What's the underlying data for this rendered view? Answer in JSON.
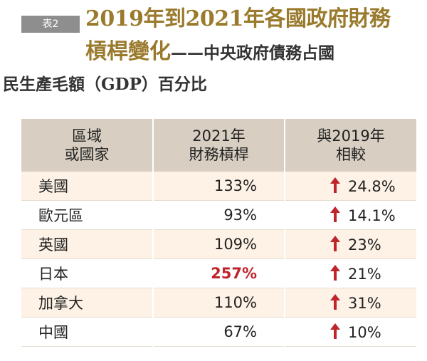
{
  "badge": "表2",
  "title": {
    "line1": "2019年到2021年各國政府財務",
    "line2_accent": "槓桿變化",
    "line2_dash": "——",
    "line2_rest": "中央政府債務占國",
    "line3": "民生產毛額（GDP）百分比"
  },
  "table": {
    "headers": [
      [
        "區域",
        "或國家"
      ],
      [
        "2021年",
        "財務槓桿"
      ],
      [
        "與2019年",
        "相較"
      ]
    ],
    "rows": [
      {
        "region": "美國",
        "leverage": "133%",
        "change": "24.8%",
        "highlight": false
      },
      {
        "region": "歐元區",
        "leverage": "93%",
        "change": "14.1%",
        "highlight": false
      },
      {
        "region": "英國",
        "leverage": "109%",
        "change": "23%",
        "highlight": false
      },
      {
        "region": "日本",
        "leverage": "257%",
        "change": "21%",
        "highlight": true
      },
      {
        "region": "加拿大",
        "leverage": "110%",
        "change": "31%",
        "highlight": false
      },
      {
        "region": "中國",
        "leverage": "67%",
        "change": "10%",
        "highlight": false
      }
    ]
  },
  "colors": {
    "accent": "#9a7a2c",
    "header_bg": "#d8cfc2",
    "row_alt_bg": "#fdf2e5",
    "arrow": "#c0242b",
    "highlight": "#c0242b"
  },
  "icons": {
    "change": "up-arrow-icon"
  }
}
